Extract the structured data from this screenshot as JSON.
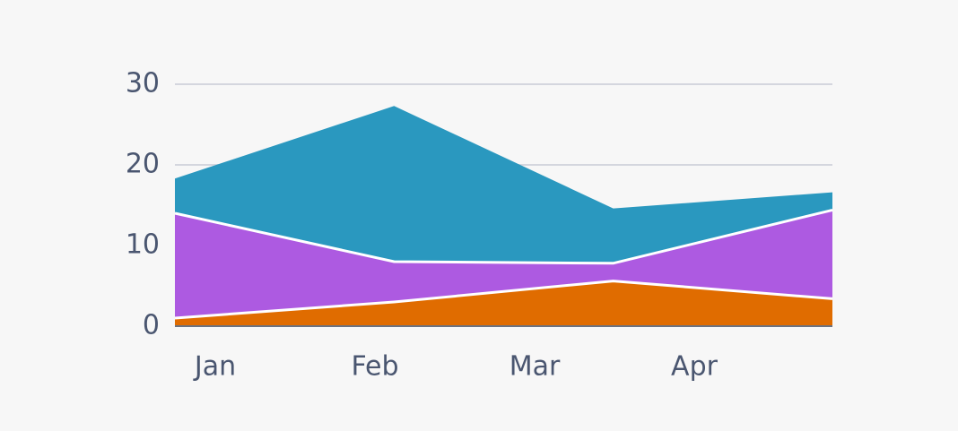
{
  "chart_data": {
    "type": "stacked-area",
    "categories": [
      "Jan",
      "Feb",
      "Mar",
      "Apr"
    ],
    "series": [
      {
        "color": "#e06c00",
        "values": [
          1,
          3,
          5.6,
          3.4
        ]
      },
      {
        "color": "#ad5ae1",
        "values": [
          13,
          5,
          2.2,
          11
        ]
      },
      {
        "color": "#2a98bf",
        "values": [
          4.3,
          19.3,
          6.8,
          2.2
        ]
      }
    ],
    "ylim": [
      0,
      30
    ],
    "yticks": [
      0,
      10,
      20,
      30
    ],
    "grid": true
  }
}
